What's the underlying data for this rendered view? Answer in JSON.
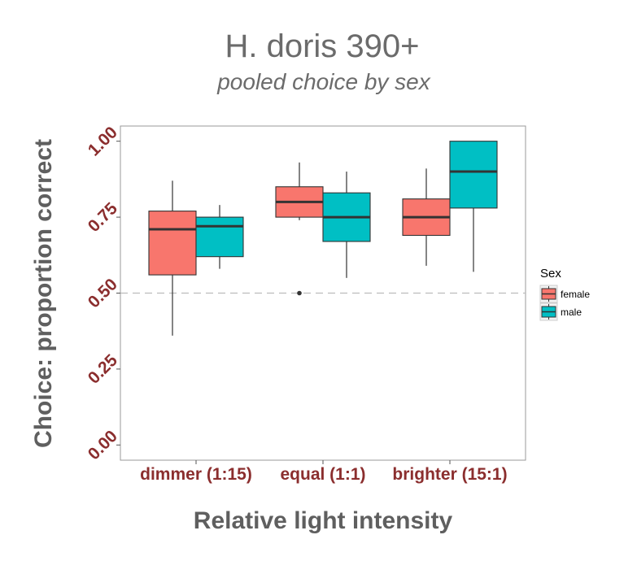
{
  "colors": {
    "female": "#f8766d",
    "male": "#00bfc4",
    "tick_text": "#8b2e2e",
    "title_text": "#6b6b6b",
    "reference_line": "#bdbdbd"
  },
  "chart_data": {
    "type": "boxplot",
    "title": "H. doris 390+",
    "subtitle": "pooled choice by sex",
    "xlabel": "Relative light intensity",
    "ylabel": "Choice: proportion correct",
    "categories": [
      "dimmer (1:15)",
      "equal (1:1)",
      "brighter (15:1)"
    ],
    "ylim": [
      -0.05,
      1.05
    ],
    "yticks": [
      0.0,
      0.25,
      0.5,
      0.75,
      1.0
    ],
    "ytick_labels": [
      "0.00",
      "0.25",
      "0.50",
      "0.75",
      "1.00"
    ],
    "grid": false,
    "reference_line": {
      "y": 0.5,
      "style": "dashed"
    },
    "legend": {
      "title": "Sex",
      "position": "right"
    },
    "series": [
      {
        "name": "female",
        "boxes": [
          {
            "category": "dimmer (1:15)",
            "whisker_low": 0.36,
            "q1": 0.56,
            "median": 0.71,
            "q3": 0.77,
            "whisker_high": 0.87,
            "outliers": []
          },
          {
            "category": "equal (1:1)",
            "whisker_low": 0.74,
            "q1": 0.75,
            "median": 0.8,
            "q3": 0.85,
            "whisker_high": 0.93,
            "outliers": [
              0.5
            ]
          },
          {
            "category": "brighter (15:1)",
            "whisker_low": 0.59,
            "q1": 0.69,
            "median": 0.75,
            "q3": 0.81,
            "whisker_high": 0.91,
            "outliers": []
          }
        ]
      },
      {
        "name": "male",
        "boxes": [
          {
            "category": "dimmer (1:15)",
            "whisker_low": 0.58,
            "q1": 0.62,
            "median": 0.72,
            "q3": 0.75,
            "whisker_high": 0.79,
            "outliers": []
          },
          {
            "category": "equal (1:1)",
            "whisker_low": 0.55,
            "q1": 0.67,
            "median": 0.75,
            "q3": 0.83,
            "whisker_high": 0.9,
            "outliers": []
          },
          {
            "category": "brighter (15:1)",
            "whisker_low": 0.57,
            "q1": 0.78,
            "median": 0.9,
            "q3": 1.0,
            "whisker_high": 1.0,
            "outliers": []
          }
        ]
      }
    ]
  }
}
